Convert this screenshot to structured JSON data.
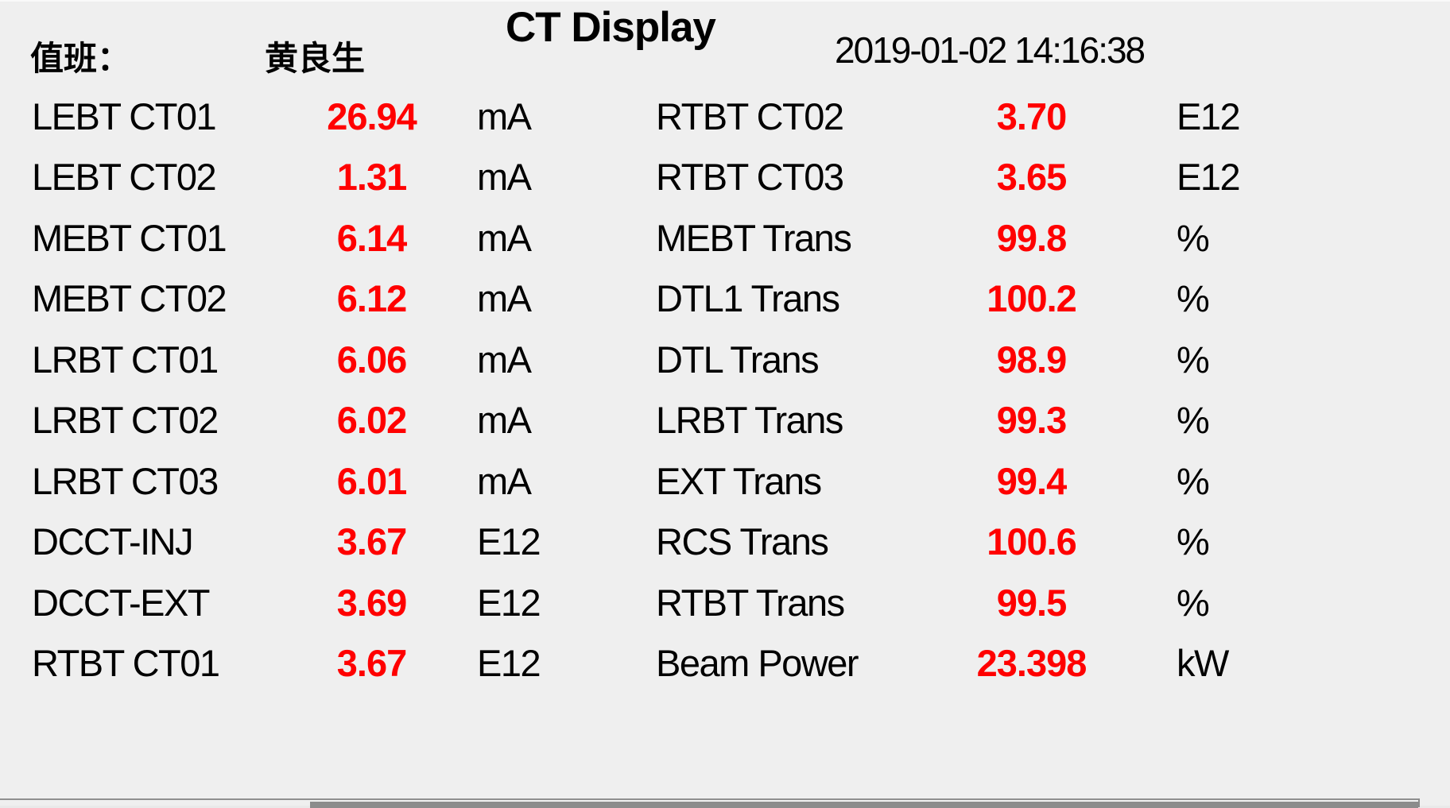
{
  "header": {
    "duty_label": "值班：",
    "duty_name": "黄良生",
    "title": "CT Display",
    "datetime": "2019-01-02  14:16:38"
  },
  "colors": {
    "value": "#ff0000",
    "label": "#000000",
    "background": "#efefef"
  },
  "readings": {
    "left": [
      {
        "label": "LEBT CT01",
        "value": "26.94",
        "unit": "mA"
      },
      {
        "label": "LEBT CT02",
        "value": "1.31",
        "unit": "mA"
      },
      {
        "label": "MEBT CT01",
        "value": "6.14",
        "unit": "mA"
      },
      {
        "label": "MEBT CT02",
        "value": "6.12",
        "unit": "mA"
      },
      {
        "label": "LRBT CT01",
        "value": "6.06",
        "unit": "mA"
      },
      {
        "label": "LRBT CT02",
        "value": "6.02",
        "unit": "mA"
      },
      {
        "label": "LRBT CT03",
        "value": "6.01",
        "unit": "mA"
      },
      {
        "label": "DCCT-INJ",
        "value": "3.67",
        "unit": "E12"
      },
      {
        "label": "DCCT-EXT",
        "value": "3.69",
        "unit": "E12"
      },
      {
        "label": "RTBT CT01",
        "value": "3.67",
        "unit": "E12"
      }
    ],
    "right": [
      {
        "label": "RTBT CT02",
        "value": "3.70",
        "unit": "E12"
      },
      {
        "label": "RTBT CT03",
        "value": "3.65",
        "unit": "E12"
      },
      {
        "label": "MEBT Trans",
        "value": "99.8",
        "unit": "%"
      },
      {
        "label": "DTL1 Trans",
        "value": "100.2",
        "unit": "%"
      },
      {
        "label": "DTL Trans",
        "value": "98.9",
        "unit": "%"
      },
      {
        "label": "LRBT Trans",
        "value": "99.3",
        "unit": "%"
      },
      {
        "label": "EXT Trans",
        "value": "99.4",
        "unit": "%"
      },
      {
        "label": "RCS Trans",
        "value": "100.6",
        "unit": "%"
      },
      {
        "label": "RTBT Trans",
        "value": "99.5",
        "unit": "%"
      },
      {
        "label": "Beam Power",
        "value": "23.398",
        "unit": "kW"
      }
    ]
  }
}
